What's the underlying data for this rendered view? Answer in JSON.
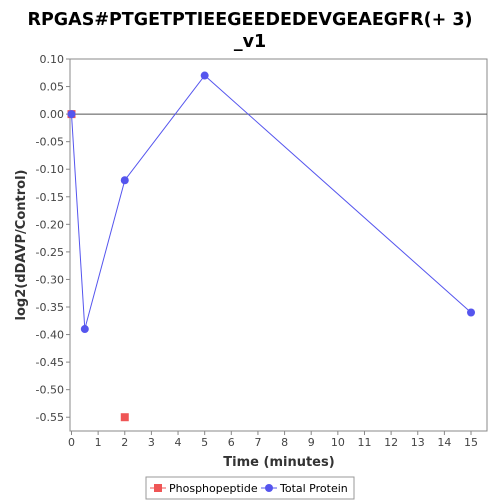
{
  "chart_data": {
    "type": "line",
    "title_line1": "RPGAS#PTGETPTIEEGEEDEDEVGEAEGFR(+ 3)",
    "title_line2": "_v1",
    "xlabel": "Time (minutes)",
    "ylabel": "log2(dDAVP/Control)",
    "xlim": [
      0,
      15.6
    ],
    "ylim": [
      -0.575,
      0.1
    ],
    "x_ticks": [
      0,
      1,
      2,
      3,
      4,
      5,
      6,
      7,
      8,
      9,
      10,
      11,
      12,
      13,
      14,
      15
    ],
    "x_tick_labels": [
      "0",
      "1",
      "2",
      "3",
      "4",
      "5",
      "6",
      "7",
      "8",
      "9",
      "10",
      "11",
      "12",
      "13",
      "14",
      "15"
    ],
    "y_ticks": [
      0.1,
      0.05,
      0.0,
      -0.05,
      -0.1,
      -0.15,
      -0.2,
      -0.25,
      -0.3,
      -0.35,
      -0.4,
      -0.45,
      -0.5,
      -0.55
    ],
    "y_tick_labels": [
      "0.10",
      "0.05",
      "0.00",
      "-0.05",
      "-0.10",
      "-0.15",
      "-0.20",
      "-0.25",
      "-0.30",
      "-0.35",
      "-0.40",
      "-0.45",
      "-0.50",
      "-0.55"
    ],
    "zero_line": true,
    "grid": false,
    "legend_position": "bottom",
    "series": [
      {
        "name": "Phosphopeptide",
        "color": "#ef5555",
        "marker": "square",
        "connected": false,
        "points": [
          {
            "x": 0,
            "y": 0.0
          },
          {
            "x": 2,
            "y": -0.55
          }
        ]
      },
      {
        "name": "Total Protein",
        "color": "#5555ee",
        "marker": "circle",
        "connected": true,
        "points": [
          {
            "x": 0,
            "y": 0.0
          },
          {
            "x": 0.5,
            "y": -0.39
          },
          {
            "x": 2,
            "y": -0.12
          },
          {
            "x": 5,
            "y": 0.07
          },
          {
            "x": 15,
            "y": -0.36
          }
        ]
      }
    ]
  }
}
